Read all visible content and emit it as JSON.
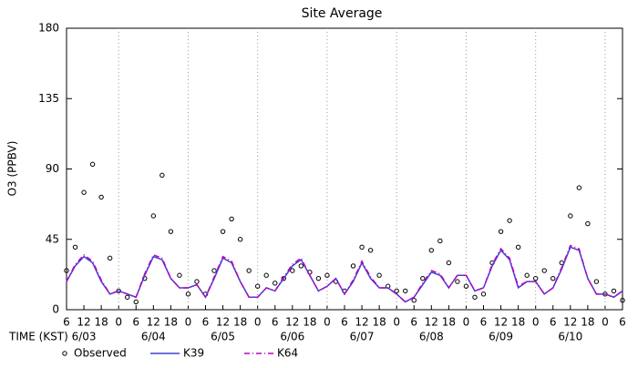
{
  "chart_data": {
    "type": "line",
    "title": "Site Average",
    "ylabel": "O3 (PPBV)",
    "xlabel": "TIME (KST)",
    "xlim": [
      0,
      192
    ],
    "ylim": [
      0,
      180
    ],
    "yticks": [
      0,
      45,
      90,
      135,
      180
    ],
    "xticks": [
      {
        "value": 0,
        "label": "6"
      },
      {
        "value": 6,
        "label": "12"
      },
      {
        "value": 12,
        "label": "18"
      },
      {
        "value": 18,
        "label": "0"
      },
      {
        "value": 24,
        "label": "6"
      },
      {
        "value": 30,
        "label": "12"
      },
      {
        "value": 36,
        "label": "18"
      },
      {
        "value": 42,
        "label": "0"
      },
      {
        "value": 48,
        "label": "6"
      },
      {
        "value": 54,
        "label": "12"
      },
      {
        "value": 60,
        "label": "18"
      },
      {
        "value": 66,
        "label": "0"
      },
      {
        "value": 72,
        "label": "6"
      },
      {
        "value": 78,
        "label": "12"
      },
      {
        "value": 84,
        "label": "18"
      },
      {
        "value": 90,
        "label": "0"
      },
      {
        "value": 96,
        "label": "6"
      },
      {
        "value": 102,
        "label": "12"
      },
      {
        "value": 108,
        "label": "18"
      },
      {
        "value": 114,
        "label": "0"
      },
      {
        "value": 120,
        "label": "6"
      },
      {
        "value": 126,
        "label": "12"
      },
      {
        "value": 132,
        "label": "18"
      },
      {
        "value": 138,
        "label": "0"
      },
      {
        "value": 144,
        "label": "6"
      },
      {
        "value": 150,
        "label": "12"
      },
      {
        "value": 156,
        "label": "18"
      },
      {
        "value": 162,
        "label": "0"
      },
      {
        "value": 168,
        "label": "6"
      },
      {
        "value": 174,
        "label": "12"
      },
      {
        "value": 180,
        "label": "18"
      },
      {
        "value": 186,
        "label": "0"
      },
      {
        "value": 192,
        "label": "6"
      }
    ],
    "date_labels": [
      {
        "value": 6,
        "label": "6/03"
      },
      {
        "value": 30,
        "label": "6/04"
      },
      {
        "value": 54,
        "label": "6/05"
      },
      {
        "value": 78,
        "label": "6/06"
      },
      {
        "value": 102,
        "label": "6/07"
      },
      {
        "value": 126,
        "label": "6/08"
      },
      {
        "value": 150,
        "label": "6/09"
      },
      {
        "value": 174,
        "label": "6/10"
      }
    ],
    "x": [
      0,
      3,
      6,
      9,
      12,
      15,
      18,
      21,
      24,
      27,
      30,
      33,
      36,
      39,
      42,
      45,
      48,
      51,
      54,
      57,
      60,
      63,
      66,
      69,
      72,
      75,
      78,
      81,
      84,
      87,
      90,
      93,
      96,
      99,
      102,
      105,
      108,
      111,
      114,
      117,
      120,
      123,
      126,
      129,
      132,
      135,
      138,
      141,
      144,
      147,
      150,
      153,
      156,
      159,
      162,
      165,
      168,
      171,
      174,
      177,
      180,
      183,
      186,
      189,
      192
    ],
    "series": [
      {
        "name": "Observed",
        "color": "#000000",
        "style": "markers",
        "values": [
          25,
          40,
          75,
          93,
          72,
          33,
          12,
          8,
          5,
          20,
          60,
          86,
          50,
          22,
          10,
          18,
          10,
          25,
          50,
          58,
          45,
          25,
          15,
          22,
          17,
          20,
          25,
          28,
          24,
          20,
          22,
          18,
          12,
          28,
          40,
          38,
          22,
          15,
          12,
          12,
          6,
          20,
          38,
          44,
          30,
          18,
          15,
          8,
          10,
          30,
          50,
          57,
          40,
          22,
          20,
          25,
          20,
          30,
          60,
          78,
          55,
          18,
          10,
          12,
          6
        ]
      },
      {
        "name": "K39",
        "color": "#4040d0",
        "style": "solid",
        "values": [
          18,
          28,
          34,
          30,
          18,
          10,
          12,
          10,
          8,
          22,
          34,
          32,
          20,
          14,
          14,
          16,
          8,
          20,
          33,
          30,
          18,
          8,
          8,
          14,
          12,
          20,
          28,
          32,
          22,
          12,
          15,
          20,
          10,
          18,
          30,
          20,
          14,
          14,
          10,
          5,
          8,
          16,
          24,
          22,
          14,
          22,
          22,
          12,
          14,
          28,
          38,
          32,
          14,
          18,
          18,
          10,
          14,
          26,
          40,
          38,
          20,
          10,
          10,
          8,
          12
        ]
      },
      {
        "name": "K64",
        "color": "#c000c0",
        "style": "dashdot",
        "values": [
          18,
          29,
          35,
          31,
          19,
          10,
          12,
          10,
          8,
          23,
          35,
          33,
          20,
          14,
          14,
          16,
          8,
          21,
          34,
          31,
          18,
          8,
          8,
          14,
          12,
          21,
          29,
          33,
          22,
          12,
          15,
          20,
          10,
          19,
          31,
          21,
          14,
          14,
          10,
          5,
          8,
          17,
          25,
          23,
          14,
          22,
          22,
          12,
          14,
          29,
          39,
          33,
          15,
          18,
          18,
          10,
          14,
          27,
          41,
          39,
          20,
          10,
          10,
          8,
          12
        ]
      }
    ]
  }
}
